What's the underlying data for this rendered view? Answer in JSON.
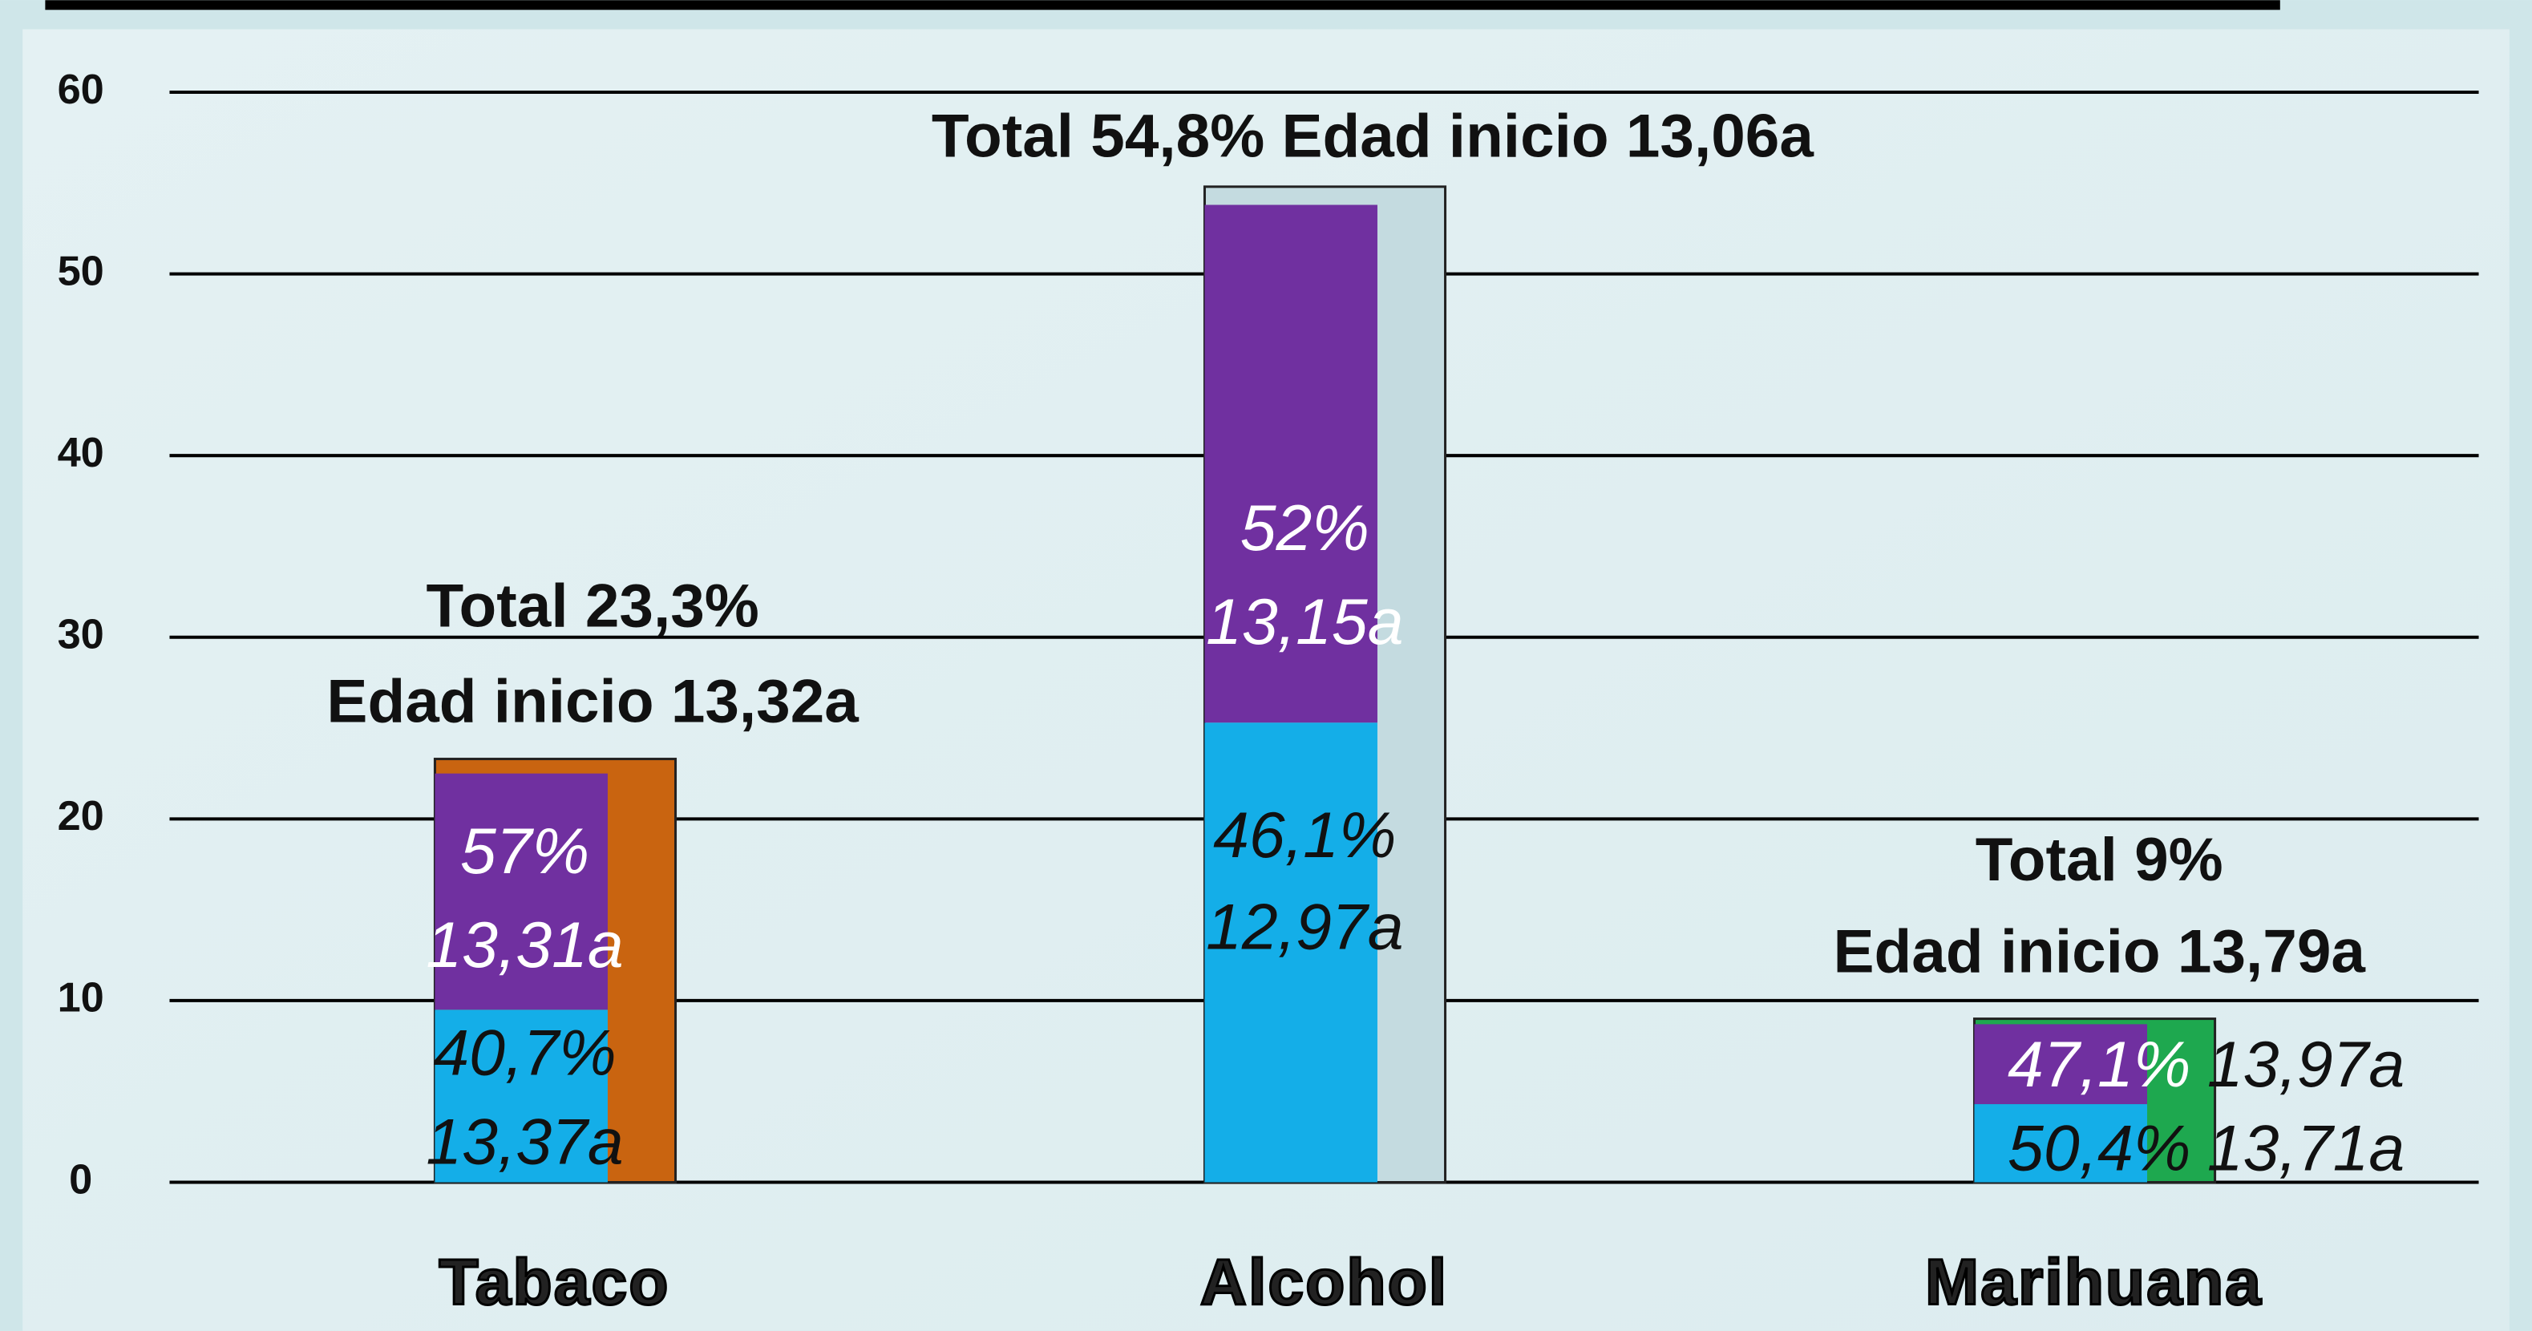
{
  "chart_data": {
    "type": "bar",
    "categories": [
      "Tabaco",
      "Alcohol",
      "Marihuana"
    ],
    "ylim": [
      0,
      60
    ],
    "yticks": [
      0,
      10,
      20,
      30,
      40,
      50,
      60
    ],
    "grid": true,
    "series": [
      {
        "values": [
          23.3,
          54.8,
          9
        ],
        "colors": [
          "#c96410",
          "#c4dbe0",
          "#1ea84f"
        ]
      },
      {
        "color": "#14aee8",
        "values": [
          9.5,
          25.3,
          4.3
        ],
        "labels": [
          [
            "40,7%",
            "13,37a"
          ],
          [
            "46,1%",
            "12,97a"
          ],
          [
            "50,4%",
            "13,71a"
          ]
        ]
      },
      {
        "color": "#7030a0",
        "values": [
          13,
          28.5,
          4.4
        ],
        "labels": [
          [
            "57%",
            "13,31a"
          ],
          [
            "52%",
            "13,15a"
          ],
          [
            "47,1%",
            "13,97a"
          ]
        ]
      }
    ],
    "total_labels": [
      [
        "Total 23,3%",
        "Edad inicio 13,32a"
      ],
      [
        "Total  54,8%  Edad inicio 13,06a"
      ],
      [
        "Total 9%",
        "Edad inicio 13,79a"
      ]
    ]
  }
}
